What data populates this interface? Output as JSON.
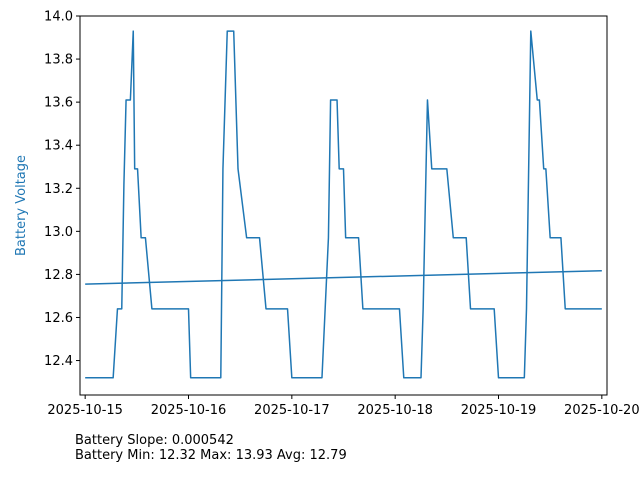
{
  "chart_data": {
    "type": "line",
    "ylabel": "Battery Voltage",
    "xlabel": "",
    "title": "",
    "ylim": [
      12.24,
      14.0
    ],
    "xlim": [
      "2025-10-14 22:48",
      "2025-10-20 01:12"
    ],
    "x_ticks": [
      "2025-10-15",
      "2025-10-16",
      "2025-10-17",
      "2025-10-18",
      "2025-10-19",
      "2025-10-20"
    ],
    "y_ticks": [
      "12.4",
      "12.6",
      "12.8",
      "13.0",
      "13.2",
      "13.4",
      "13.6",
      "13.8",
      "14.0"
    ],
    "grid": false,
    "line_color": "#1f77b4",
    "series": [
      {
        "x": [
          "2025-10-15 00:00",
          "2025-10-15 06:30",
          "2025-10-15 07:30",
          "2025-10-15 08:30",
          "2025-10-15 09:00",
          "2025-10-15 09:30",
          "2025-10-15 10:30",
          "2025-10-15 11:10",
          "2025-10-15 11:30",
          "2025-10-15 12:10",
          "2025-10-15 13:00",
          "2025-10-15 14:00",
          "2025-10-15 15:30",
          "2025-10-15 17:00",
          "2025-10-15 17:30",
          "2025-10-15 18:00",
          "2025-10-16 00:00",
          "2025-10-16 00:30",
          "2025-10-16 07:30",
          "2025-10-16 08:00",
          "2025-10-16 09:00",
          "2025-10-16 10:30",
          "2025-10-16 11:30",
          "2025-10-16 13:30",
          "2025-10-16 14:30",
          "2025-10-16 16:30",
          "2025-10-16 18:00",
          "2025-10-16 19:00",
          "2025-10-16 23:00",
          "2025-10-17 00:00",
          "2025-10-17 07:00",
          "2025-10-17 08:30",
          "2025-10-17 09:00",
          "2025-10-17 10:30",
          "2025-10-17 11:00",
          "2025-10-17 12:00",
          "2025-10-17 12:30",
          "2025-10-17 15:30",
          "2025-10-17 16:30",
          "2025-10-17 17:00",
          "2025-10-18 01:00",
          "2025-10-18 02:00",
          "2025-10-18 06:00",
          "2025-10-18 06:30",
          "2025-10-18 07:30",
          "2025-10-18 08:30",
          "2025-10-18 12:00",
          "2025-10-18 13:30",
          "2025-10-18 16:30",
          "2025-10-18 17:30",
          "2025-10-18 23:00",
          "2025-10-19 00:00",
          "2025-10-19 06:00",
          "2025-10-19 06:30",
          "2025-10-19 07:30",
          "2025-10-19 09:00",
          "2025-10-19 09:30",
          "2025-10-19 10:30",
          "2025-10-19 11:00",
          "2025-10-19 12:00",
          "2025-10-19 14:30",
          "2025-10-19 15:30",
          "2025-10-19 16:30",
          "2025-10-20 00:00"
        ],
        "values": [
          12.32,
          12.32,
          12.64,
          12.64,
          13.22,
          13.61,
          13.61,
          13.93,
          13.29,
          13.29,
          12.97,
          12.97,
          12.64,
          12.64,
          12.64,
          12.64,
          12.64,
          12.32,
          12.32,
          13.29,
          13.93,
          13.93,
          13.29,
          12.97,
          12.97,
          12.97,
          12.64,
          12.64,
          12.64,
          12.32,
          12.32,
          12.97,
          13.61,
          13.61,
          13.29,
          13.29,
          12.97,
          12.97,
          12.64,
          12.64,
          12.64,
          12.32,
          12.32,
          12.64,
          13.61,
          13.29,
          13.29,
          12.97,
          12.97,
          12.64,
          12.64,
          12.32,
          12.32,
          12.64,
          13.93,
          13.61,
          13.61,
          13.29,
          13.29,
          12.97,
          12.97,
          12.64,
          12.64,
          12.64
        ]
      },
      {
        "x": [
          "2025-10-15 00:00",
          "2025-10-20 00:00"
        ],
        "values": [
          12.755,
          12.817
        ]
      }
    ]
  },
  "stats": {
    "slope_text": "Battery Slope: 0.000542",
    "minmax_text": "Battery Min: 12.32 Max: 13.93 Avg: 12.79"
  }
}
